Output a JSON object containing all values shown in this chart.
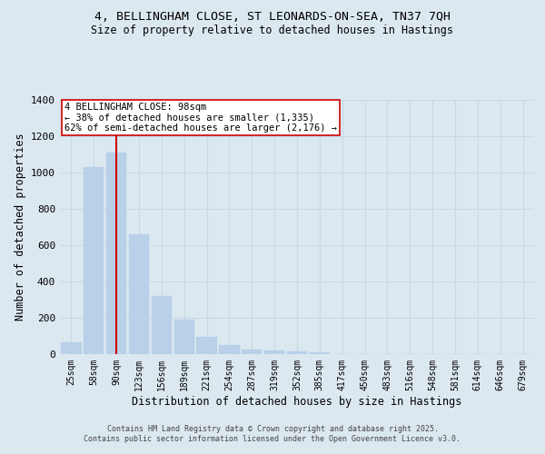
{
  "title_line1": "4, BELLINGHAM CLOSE, ST LEONARDS-ON-SEA, TN37 7QH",
  "title_line2": "Size of property relative to detached houses in Hastings",
  "xlabel": "Distribution of detached houses by size in Hastings",
  "ylabel": "Number of detached properties",
  "categories": [
    "25sqm",
    "58sqm",
    "90sqm",
    "123sqm",
    "156sqm",
    "189sqm",
    "221sqm",
    "254sqm",
    "287sqm",
    "319sqm",
    "352sqm",
    "385sqm",
    "417sqm",
    "450sqm",
    "483sqm",
    "516sqm",
    "548sqm",
    "581sqm",
    "614sqm",
    "646sqm",
    "679sqm"
  ],
  "values": [
    65,
    1030,
    1110,
    660,
    320,
    190,
    95,
    50,
    25,
    20,
    15,
    10,
    0,
    0,
    0,
    0,
    0,
    0,
    0,
    0,
    0
  ],
  "bar_color": "#b8d0e8",
  "bar_edgecolor": "#b8d0e8",
  "grid_color": "#c8d8e8",
  "background_color": "#dce8f0",
  "vline_color": "#cc0000",
  "annotation_text": "4 BELLINGHAM CLOSE: 98sqm\n← 38% of detached houses are smaller (1,335)\n62% of semi-detached houses are larger (2,176) →",
  "annotation_box_color": "#ffffff",
  "annotation_box_edgecolor": "#cc0000",
  "ylim": [
    0,
    1400
  ],
  "yticks": [
    0,
    200,
    400,
    600,
    800,
    1000,
    1200,
    1400
  ],
  "footer_line1": "Contains HM Land Registry data © Crown copyright and database right 2025.",
  "footer_line2": "Contains public sector information licensed under the Open Government Licence v3.0."
}
